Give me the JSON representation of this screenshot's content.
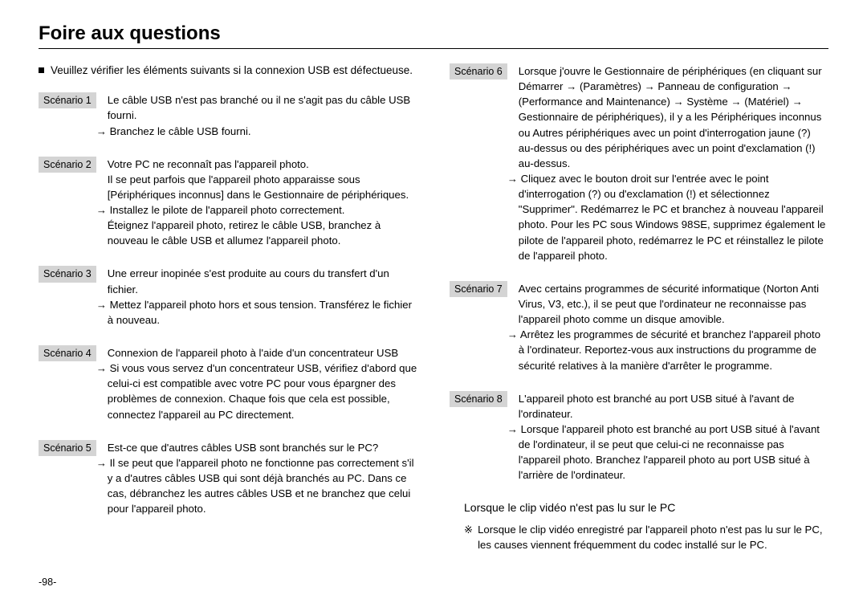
{
  "title": "Foire aux questions",
  "intro_bullet": "Veuillez vérifier les éléments suivants si la connexion USB est défectueuse.",
  "left": {
    "s1": {
      "label": "Scénario 1",
      "l1": "Le câble USB n'est pas branché ou il ne s'agit pas du câble USB fourni.",
      "l2": "→ Branchez le câble USB fourni."
    },
    "s2": {
      "label": "Scénario 2",
      "l1": "Votre PC ne reconnaît pas l'appareil photo.",
      "l2": "Il se peut parfois que l'appareil photo apparaisse sous [Périphériques inconnus] dans le Gestionnaire de périphériques.",
      "l3": "→ Installez le pilote de l'appareil photo correctement.",
      "l4": "Éteignez l'appareil photo, retirez le câble USB, branchez à nouveau le câble USB et allumez l'appareil photo."
    },
    "s3": {
      "label": "Scénario 3",
      "l1": "Une erreur inopinée s'est produite au cours du transfert d'un fichier.",
      "l2": "→ Mettez l'appareil photo hors et sous tension. Transférez le fichier à nouveau."
    },
    "s4": {
      "label": "Scénario 4",
      "l1": "Connexion de l'appareil photo à l'aide d'un concentrateur USB",
      "l2": "→ Si vous vous servez d'un concentrateur USB, vérifiez d'abord que celui-ci est compatible avec votre PC pour vous épargner des problèmes de connexion. Chaque fois que cela est possible, connectez l'appareil au PC directement."
    },
    "s5": {
      "label": "Scénario 5",
      "l1": "Est-ce que d'autres câbles USB sont branchés sur le PC?",
      "l2": "→ Il se peut que l'appareil photo ne fonctionne pas correctement s'il y a d'autres câbles USB qui sont déjà branchés au PC. Dans ce cas, débranchez les autres câbles USB et ne branchez que celui pour l'appareil photo."
    }
  },
  "right": {
    "s6": {
      "label": "Scénario 6",
      "l1": "Lorsque j'ouvre le Gestionnaire de périphériques (en cliquant sur Démarrer → (Paramètres) → Panneau de configuration → (Performance and Maintenance) → Système → (Matériel) → Gestionnaire de périphériques), il y a les Périphériques inconnus ou Autres périphériques avec un point d'interrogation jaune (?) au-dessus ou des périphériques avec un point d'exclamation (!) au-dessus.",
      "l2": "→ Cliquez avec le bouton droit sur l'entrée avec le point d'interrogation (?) ou d'exclamation (!) et sélectionnez \"Supprimer\". Redémarrez le PC et branchez à nouveau l'appareil photo. Pour les PC sous Windows 98SE, supprimez également le pilote de l'appareil photo, redémarrez le PC et réinstallez le pilote de l'appareil photo."
    },
    "s7": {
      "label": "Scénario 7",
      "l1": "Avec certains programmes de sécurité informatique (Norton Anti Virus, V3, etc.), il se peut que l'ordinateur ne reconnaisse pas l'appareil photo comme un disque amovible.",
      "l2": "→ Arrêtez les programmes de sécurité et branchez l'appareil photo à l'ordinateur. Reportez-vous aux instructions du programme de sécurité relatives à la manière d'arrêter le programme."
    },
    "s8": {
      "label": "Scénario 8",
      "l1": "L'appareil photo est branché au port USB situé à l'avant de l'ordinateur.",
      "l2": "→ Lorsque l'appareil photo est branché au port USB situé à l'avant de l'ordinateur, il se peut que celui-ci ne reconnaisse pas l'appareil photo. Branchez l'appareil photo au port USB situé à l'arrière de l'ordinateur."
    },
    "subhead": "Lorsque le clip vidéo n'est pas lu sur le PC",
    "note_mark": "※",
    "note": "Lorsque le clip vidéo enregistré par l'appareil photo n'est pas lu sur le PC, les causes viennent fréquemment du codec installé sur le PC."
  },
  "page": "-98-"
}
